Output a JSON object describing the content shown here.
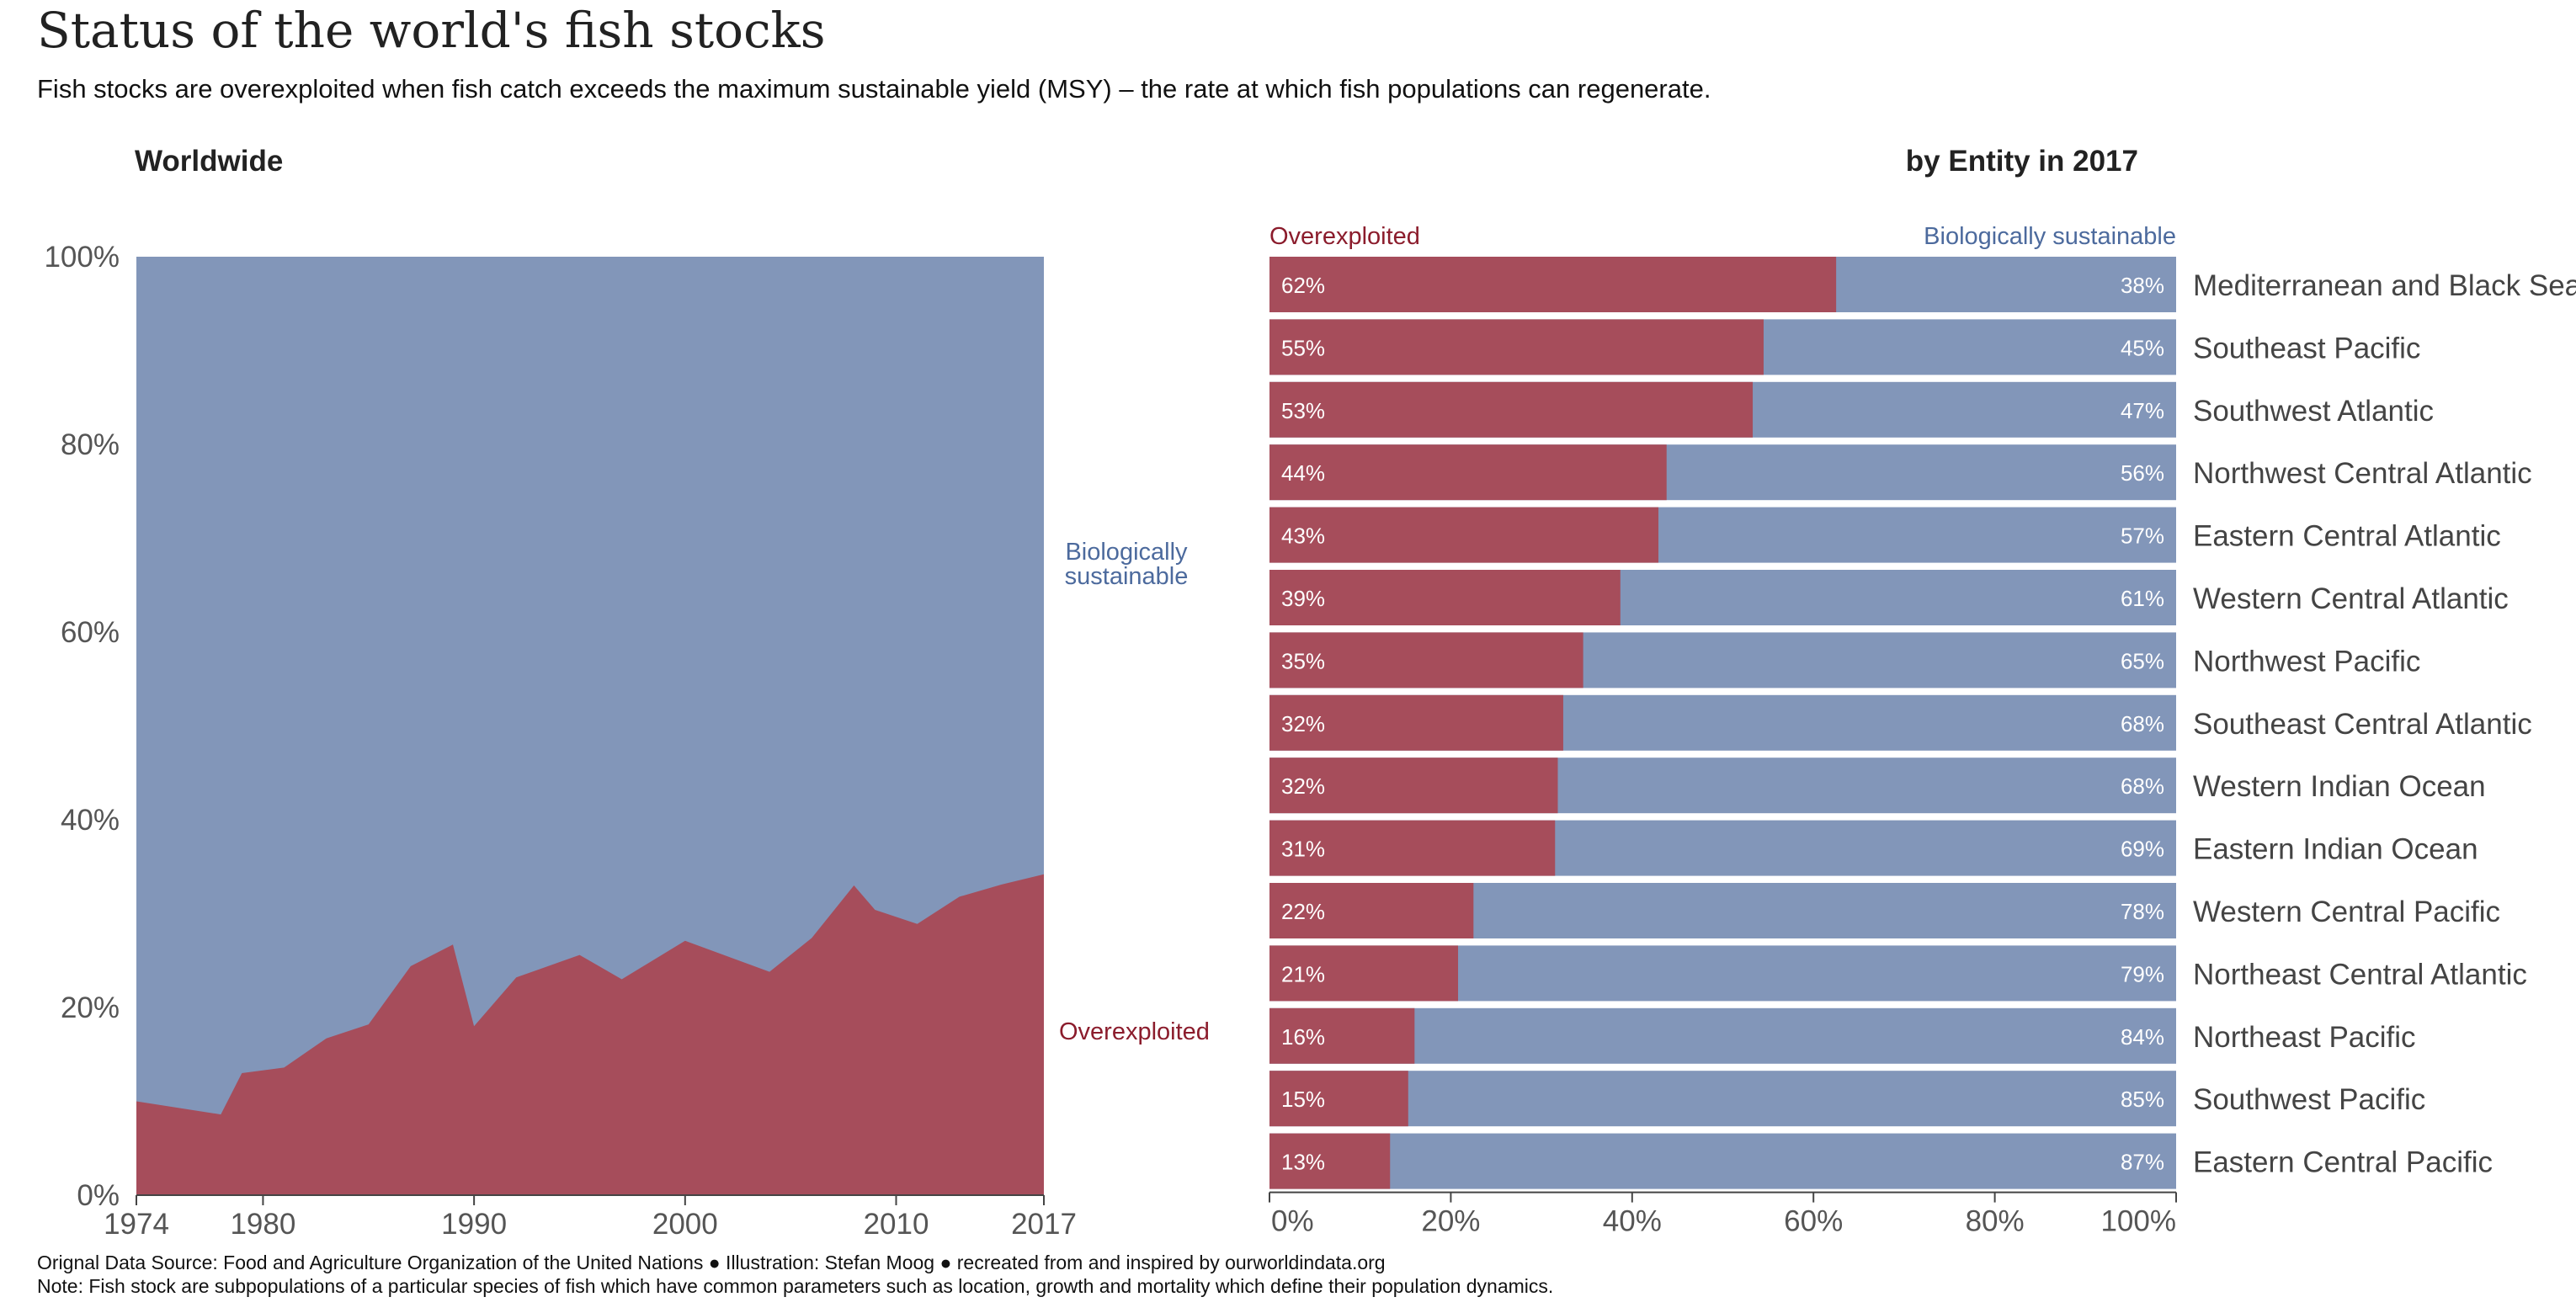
{
  "title": "Status of the world's fish stocks",
  "subtitle": "Fish stocks are overexploited when fish catch exceeds the maximum sustainable yield (MSY) – the rate at which fish populations can regenerate.",
  "colors": {
    "overexploited": "#a64d5b",
    "sustainable": "#8296b9",
    "overexploited_text": "#8b1c2c",
    "sustainable_text": "#4c6a9d"
  },
  "footer": {
    "source": "Orignal Data Source: Food and Agriculture Organization of the United Nations ● Illustration:  Stefan Moog ● recreated from and inspired by ourworldindata.org",
    "note": "Note: Fish stock are subpopulations of a particular species of fish which have common parameters such as location, growth and mortality which define their population dynamics."
  },
  "chart_data": [
    {
      "type": "area",
      "title": "Worldwide",
      "x_ticks": [
        "1974",
        "1980",
        "1990",
        "2000",
        "2010",
        "2017"
      ],
      "x_tick_values": [
        1974,
        1980,
        1990,
        2000,
        2010,
        2017
      ],
      "y_ticks": [
        "0%",
        "20%",
        "40%",
        "60%",
        "80%",
        "100%"
      ],
      "ylim": [
        0,
        100
      ],
      "xlim": [
        1974,
        2017
      ],
      "series_labels": {
        "sustainable": "Biologically sustainable",
        "overexploited": "Overexploited"
      },
      "x": [
        1974,
        1978,
        1979,
        1981,
        1983,
        1985,
        1987,
        1989,
        1990,
        1992,
        1995,
        1997,
        2000,
        2004,
        2006,
        2008,
        2009,
        2011,
        2013,
        2015,
        2017
      ],
      "overexploited": [
        10,
        8.6,
        13,
        13.6,
        16.7,
        18.2,
        24.4,
        26.7,
        18,
        23.2,
        25.6,
        23,
        27.1,
        23.8,
        27.4,
        33,
        30.4,
        28.9,
        31.8,
        33.1,
        34.2
      ]
    },
    {
      "type": "bar",
      "stacked": true,
      "title": "by Entity in 2017",
      "legend": {
        "left": "Overexploited",
        "right": "Biologically sustainable"
      },
      "x_ticks": [
        "0%",
        "20%",
        "40%",
        "60%",
        "80%",
        "100%"
      ],
      "categories": [
        "Mediterranean and Black Sea",
        "Southeast Pacific",
        "Southwest Atlantic",
        "Northwest Central Atlantic",
        "Eastern Central Atlantic",
        "Western Central Atlantic",
        "Northwest Pacific",
        "Southeast Central Atlantic",
        "Western Indian Ocean",
        "Eastern Indian Ocean",
        "Western Central Pacific",
        "Northeast Central Atlantic",
        "Northeast Pacific",
        "Southwest Pacific",
        "Eastern Central Pacific"
      ],
      "overexploited": [
        62.5,
        54.5,
        53.3,
        43.8,
        42.9,
        38.7,
        34.6,
        32.4,
        31.8,
        31.5,
        22.5,
        20.8,
        16,
        15.3,
        13.3
      ],
      "overexploited_labels": [
        "62%",
        "55%",
        "53%",
        "44%",
        "43%",
        "39%",
        "35%",
        "32%",
        "32%",
        "31%",
        "22%",
        "21%",
        "16%",
        "15%",
        "13%"
      ],
      "sustainable_labels": [
        "38%",
        "45%",
        "47%",
        "56%",
        "57%",
        "61%",
        "65%",
        "68%",
        "68%",
        "69%",
        "78%",
        "79%",
        "84%",
        "85%",
        "87%"
      ]
    }
  ]
}
